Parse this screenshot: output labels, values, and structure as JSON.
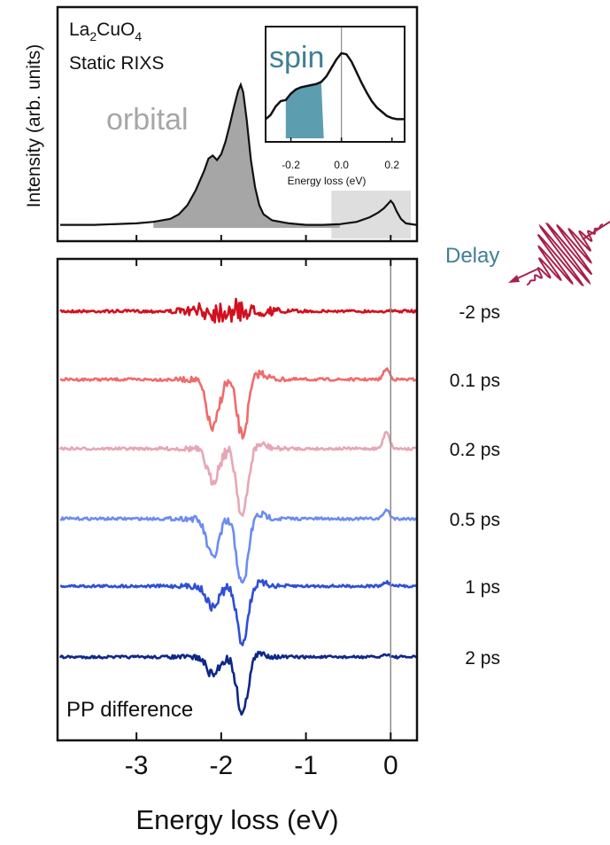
{
  "colors": {
    "static_fill": "#a6a6a6",
    "static_line": "#111111",
    "spin_fill": "#5c9eaf",
    "spin_text": "#3f7f95",
    "orbital_text": "#a6a6a6",
    "delay_text": "#3f7f95",
    "pulse": "#a8204a",
    "zero_line": "#8c8c8c",
    "highlight_box": "#dedede"
  },
  "chart_data": [
    {
      "type": "area",
      "panel": "static",
      "title": "",
      "sample_label": {
        "prefix": "La",
        "sub1": "2",
        "mid": "CuO",
        "sub2": "4"
      },
      "subtitle": "Static RIXS",
      "ylabel": "Intensity (arb. units)",
      "xlim": [
        -3.9,
        0.3
      ],
      "ylim": [
        0,
        1.0
      ],
      "x_ticks": [
        -3,
        -2,
        -1,
        0
      ],
      "annotations": {
        "orbital": "orbital",
        "spin": "spin"
      },
      "shaded_regions": [
        {
          "name": "orbital",
          "from": -3.9,
          "to": -0.6
        },
        {
          "name": "magnetic",
          "from": -0.7,
          "to": 0.3
        }
      ],
      "x": [
        -3.9,
        -3.5,
        -3.0,
        -2.8,
        -2.6,
        -2.5,
        -2.4,
        -2.3,
        -2.2,
        -2.15,
        -2.1,
        -2.05,
        -2.0,
        -1.95,
        -1.9,
        -1.85,
        -1.8,
        -1.77,
        -1.74,
        -1.7,
        -1.65,
        -1.6,
        -1.55,
        -1.5,
        -1.4,
        -1.2,
        -1.0,
        -0.8,
        -0.6,
        -0.4,
        -0.25,
        -0.15,
        -0.08,
        -0.03,
        0.0,
        0.03,
        0.07,
        0.12,
        0.18,
        0.3
      ],
      "values": [
        0.02,
        0.02,
        0.03,
        0.04,
        0.06,
        0.09,
        0.15,
        0.25,
        0.38,
        0.46,
        0.48,
        0.45,
        0.49,
        0.57,
        0.68,
        0.8,
        0.91,
        0.95,
        0.9,
        0.72,
        0.45,
        0.27,
        0.15,
        0.09,
        0.05,
        0.03,
        0.02,
        0.02,
        0.025,
        0.04,
        0.07,
        0.1,
        0.13,
        0.16,
        0.18,
        0.16,
        0.11,
        0.06,
        0.03,
        0.02
      ]
    },
    {
      "type": "line",
      "panel": "inset",
      "xlabel": "Energy loss (eV)",
      "xlim": [
        -0.3,
        0.25
      ],
      "ylim": [
        0,
        1.0
      ],
      "x_tick_labels": [
        "-0.2",
        "0.0",
        "0.2"
      ],
      "x_ticks": [
        -0.2,
        0.0,
        0.2
      ],
      "shaded_region": {
        "from": -0.22,
        "to": -0.07
      },
      "x": [
        -0.3,
        -0.28,
        -0.26,
        -0.24,
        -0.22,
        -0.2,
        -0.18,
        -0.16,
        -0.14,
        -0.12,
        -0.1,
        -0.08,
        -0.06,
        -0.04,
        -0.02,
        0.0,
        0.02,
        0.04,
        0.06,
        0.08,
        0.1,
        0.12,
        0.14,
        0.16,
        0.18,
        0.2,
        0.22,
        0.25
      ],
      "values": [
        0.18,
        0.22,
        0.3,
        0.35,
        0.36,
        0.42,
        0.46,
        0.48,
        0.49,
        0.5,
        0.51,
        0.53,
        0.58,
        0.66,
        0.74,
        0.8,
        0.79,
        0.72,
        0.62,
        0.52,
        0.43,
        0.35,
        0.29,
        0.25,
        0.21,
        0.19,
        0.18,
        0.18
      ]
    },
    {
      "type": "line",
      "panel": "pump-probe",
      "xlabel": "Energy loss (eV)",
      "xlim": [
        -3.9,
        0.3
      ],
      "x_ticks": [
        -3,
        -2,
        -1,
        0
      ],
      "x_tick_labels": [
        "-3",
        "-2",
        "-1",
        "0"
      ],
      "annotation": "PP difference",
      "legend_title": "Delay",
      "series": [
        {
          "name": "-2 ps",
          "color": "#d2101e",
          "amp": 0.7,
          "dip": [
            0,
            0,
            0
          ],
          "peak0": 0.0
        },
        {
          "name": "0.1 ps",
          "color": "#f06b6b",
          "amp": 0.45,
          "dip": [
            1.4,
            1.6,
            0.6
          ],
          "peak0": 0.55
        },
        {
          "name": "0.2 ps",
          "color": "#e6a7b5",
          "amp": 0.45,
          "dip": [
            0.9,
            1.9,
            0.4
          ],
          "peak0": 0.9
        },
        {
          "name": "0.5 ps",
          "color": "#6c8cf0",
          "amp": 0.4,
          "dip": [
            1.1,
            1.9,
            0.4
          ],
          "peak0": 0.45
        },
        {
          "name": "1 ps",
          "color": "#2f4fd6",
          "amp": 0.35,
          "dip": [
            0.6,
            1.6,
            0.3
          ],
          "peak0": 0.2
        },
        {
          "name": "2 ps",
          "color": "#0f2787",
          "amp": 0.35,
          "dip": [
            0.5,
            1.6,
            0.3
          ],
          "peak0": 0.15
        }
      ]
    }
  ]
}
